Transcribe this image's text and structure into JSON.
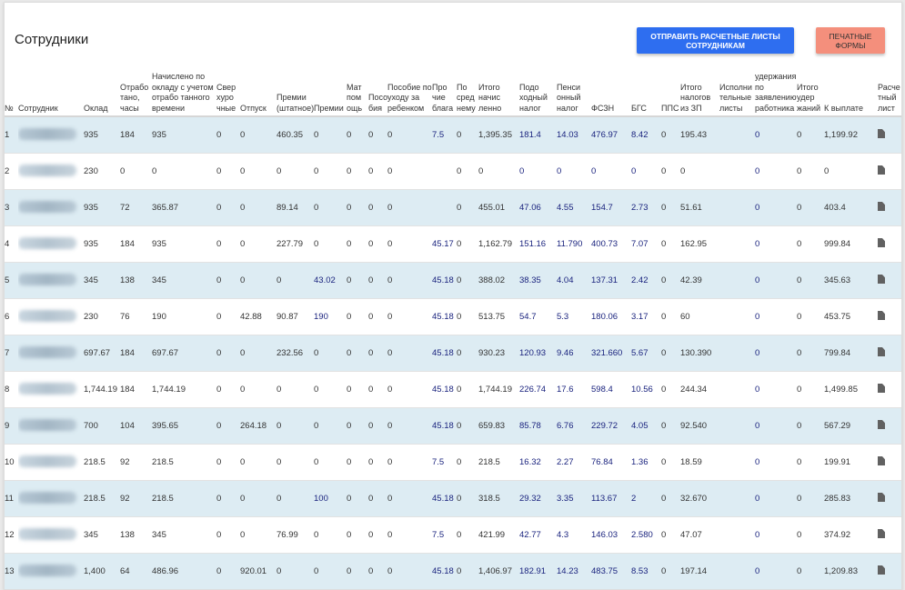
{
  "page": {
    "title": "Сотрудники",
    "send_button": "Отправить расчетные листы сотрудникам",
    "print_button": "Печатные формы"
  },
  "table": {
    "columns": [
      "№",
      "Сотрудник",
      "Оклад",
      "Отрабо тано, часы",
      "Начислено по окладу с учетом отрабо танного времени",
      "Свер хуро чные",
      "Отпуск",
      "Премии (штатное)",
      "Премии",
      "Мат пом ощь",
      "Посо бия",
      "Пособие по уходу за ребенком",
      "Про чие блага",
      "По сред нему",
      "Итого начис ленно",
      "Подо ходный налог",
      "Пенси онный налог",
      "ФСЗН",
      "БГС",
      "ППС",
      "Итого налогов из ЗП",
      "Исполни тельные листы",
      "удержания по заявлению работника",
      "Итого удер жаний",
      "К выплате",
      "Расче тный лист"
    ],
    "rows": [
      [
        "1",
        "",
        "935",
        "184",
        "935",
        "0",
        "0",
        "460.35",
        "0",
        "0",
        "0",
        "0",
        "7.5",
        "0",
        "1,395.35",
        "181.4",
        "14.03",
        "476.97",
        "8.42",
        "0",
        "195.43",
        "",
        "0",
        "0",
        "1,199.92"
      ],
      [
        "2",
        "",
        "230",
        "0",
        "0",
        "0",
        "0",
        "0",
        "0",
        "0",
        "0",
        "0",
        "",
        "0",
        "0",
        "0",
        "0",
        "0",
        "0",
        "0",
        "0",
        "",
        "0",
        "0",
        "0"
      ],
      [
        "3",
        "",
        "935",
        "72",
        "365.87",
        "0",
        "0",
        "89.14",
        "0",
        "0",
        "0",
        "0",
        "",
        "0",
        "455.01",
        "47.06",
        "4.55",
        "154.7",
        "2.73",
        "0",
        "51.61",
        "",
        "0",
        "0",
        "403.4"
      ],
      [
        "4",
        "",
        "935",
        "184",
        "935",
        "0",
        "0",
        "227.79",
        "0",
        "0",
        "0",
        "0",
        "45.17",
        "0",
        "1,162.79",
        "151.16",
        "11.790",
        "400.73",
        "7.07",
        "0",
        "162.95",
        "",
        "0",
        "0",
        "999.84"
      ],
      [
        "5",
        "",
        "345",
        "138",
        "345",
        "0",
        "0",
        "0",
        "43.02",
        "0",
        "0",
        "0",
        "45.18",
        "0",
        "388.02",
        "38.35",
        "4.04",
        "137.31",
        "2.42",
        "0",
        "42.39",
        "",
        "0",
        "0",
        "345.63"
      ],
      [
        "6",
        "",
        "230",
        "76",
        "190",
        "0",
        "42.88",
        "90.87",
        "190",
        "0",
        "0",
        "0",
        "45.18",
        "0",
        "513.75",
        "54.7",
        "5.3",
        "180.06",
        "3.17",
        "0",
        "60",
        "",
        "0",
        "0",
        "453.75"
      ],
      [
        "7",
        "",
        "697.67",
        "184",
        "697.67",
        "0",
        "0",
        "232.56",
        "0",
        "0",
        "0",
        "0",
        "45.18",
        "0",
        "930.23",
        "120.93",
        "9.46",
        "321.660",
        "5.67",
        "0",
        "130.390",
        "",
        "0",
        "0",
        "799.84"
      ],
      [
        "8",
        "",
        "1,744.19",
        "184",
        "1,744.19",
        "0",
        "0",
        "0",
        "0",
        "0",
        "0",
        "0",
        "45.18",
        "0",
        "1,744.19",
        "226.74",
        "17.6",
        "598.4",
        "10.56",
        "0",
        "244.34",
        "",
        "0",
        "0",
        "1,499.85"
      ],
      [
        "9",
        "",
        "700",
        "104",
        "395.65",
        "0",
        "264.18",
        "0",
        "0",
        "0",
        "0",
        "0",
        "45.18",
        "0",
        "659.83",
        "85.78",
        "6.76",
        "229.72",
        "4.05",
        "0",
        "92.540",
        "",
        "0",
        "0",
        "567.29"
      ],
      [
        "10",
        "",
        "218.5",
        "92",
        "218.5",
        "0",
        "0",
        "0",
        "0",
        "0",
        "0",
        "0",
        "7.5",
        "0",
        "218.5",
        "16.32",
        "2.27",
        "76.84",
        "1.36",
        "0",
        "18.59",
        "",
        "0",
        "0",
        "199.91"
      ],
      [
        "11",
        "",
        "218.5",
        "92",
        "218.5",
        "0",
        "0",
        "0",
        "100",
        "0",
        "0",
        "0",
        "45.18",
        "0",
        "318.5",
        "29.32",
        "3.35",
        "113.67",
        "2",
        "0",
        "32.670",
        "",
        "0",
        "0",
        "285.83"
      ],
      [
        "12",
        "",
        "345",
        "138",
        "345",
        "0",
        "0",
        "76.99",
        "0",
        "0",
        "0",
        "0",
        "7.5",
        "0",
        "421.99",
        "42.77",
        "4.3",
        "146.03",
        "2.580",
        "0",
        "47.07",
        "",
        "0",
        "0",
        "374.92"
      ],
      [
        "13",
        "",
        "1,400",
        "64",
        "486.96",
        "0",
        "920.01",
        "0",
        "0",
        "0",
        "0",
        "0",
        "45.18",
        "0",
        "1,406.97",
        "182.91",
        "14.23",
        "483.75",
        "8.53",
        "0",
        "197.14",
        "",
        "0",
        "0",
        "1,209.83"
      ]
    ],
    "link_row_cells": {
      "5": [
        8
      ],
      "6": [
        8
      ],
      "11": [
        8
      ]
    }
  },
  "icons": {
    "payslip": "document-icon"
  },
  "colors": {
    "primary_button": "#2e6ef0",
    "secondary_button": "#f48f7c",
    "alt_row": "#ddecf3",
    "link_text": "#1a237e"
  }
}
